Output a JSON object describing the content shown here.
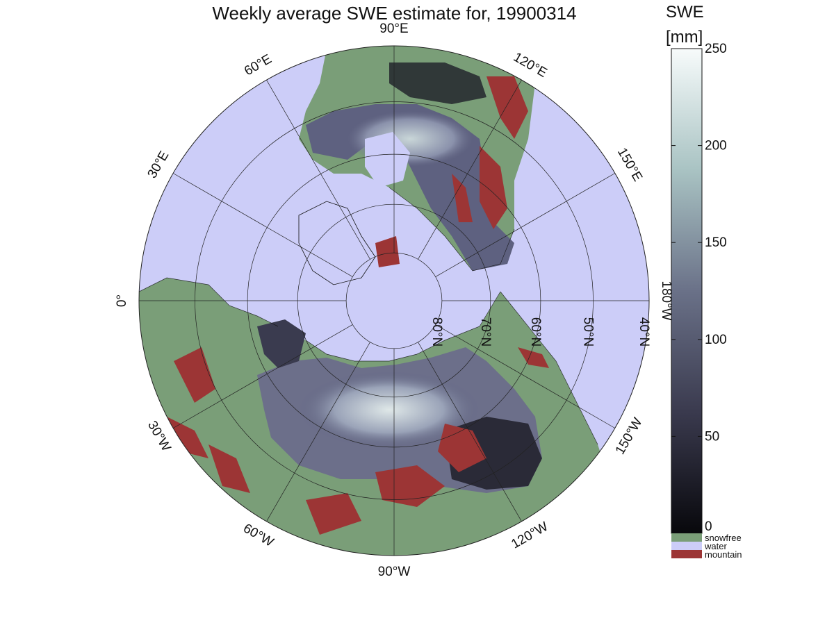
{
  "title": "Weekly average SWE estimate for, 19900314",
  "colorbar": {
    "label_line1": "SWE",
    "label_line2": "[mm]",
    "ticks": [
      {
        "value": 250,
        "label": "250"
      },
      {
        "value": 200,
        "label": "200"
      },
      {
        "value": 150,
        "label": "150"
      },
      {
        "value": 100,
        "label": "100"
      },
      {
        "value": 50,
        "label": "50"
      },
      {
        "value": 0,
        "label": "0"
      }
    ],
    "categories": [
      {
        "label": "snowfree",
        "color": "#7a9e78"
      },
      {
        "label": "water",
        "color": "#cccdf8"
      },
      {
        "label": "mountain",
        "color": "#9c3535"
      }
    ],
    "gradient_top": "#f7fbfb",
    "gradient_mid": "#5e6180",
    "gradient_bottom": "#08080c"
  },
  "map": {
    "projection": "north-polar-stereographic",
    "ocean_color": "#cccdf8",
    "snowfree_color": "#7a9e78",
    "mountain_color": "#9c3535",
    "meridian_labels": [
      {
        "label": "90°W"
      },
      {
        "label": "120°W"
      },
      {
        "label": "150°W"
      },
      {
        "label": "180°W"
      },
      {
        "label": "150°E"
      },
      {
        "label": "120°E"
      },
      {
        "label": "90°E"
      },
      {
        "label": "60°E"
      },
      {
        "label": "30°E"
      },
      {
        "label": "0°"
      },
      {
        "label": "30°W"
      },
      {
        "label": "60°W"
      }
    ],
    "parallel_labels": [
      {
        "label": "80°N"
      },
      {
        "label": "70°N"
      },
      {
        "label": "60°N"
      },
      {
        "label": "50°N"
      },
      {
        "label": "40°N"
      }
    ]
  }
}
